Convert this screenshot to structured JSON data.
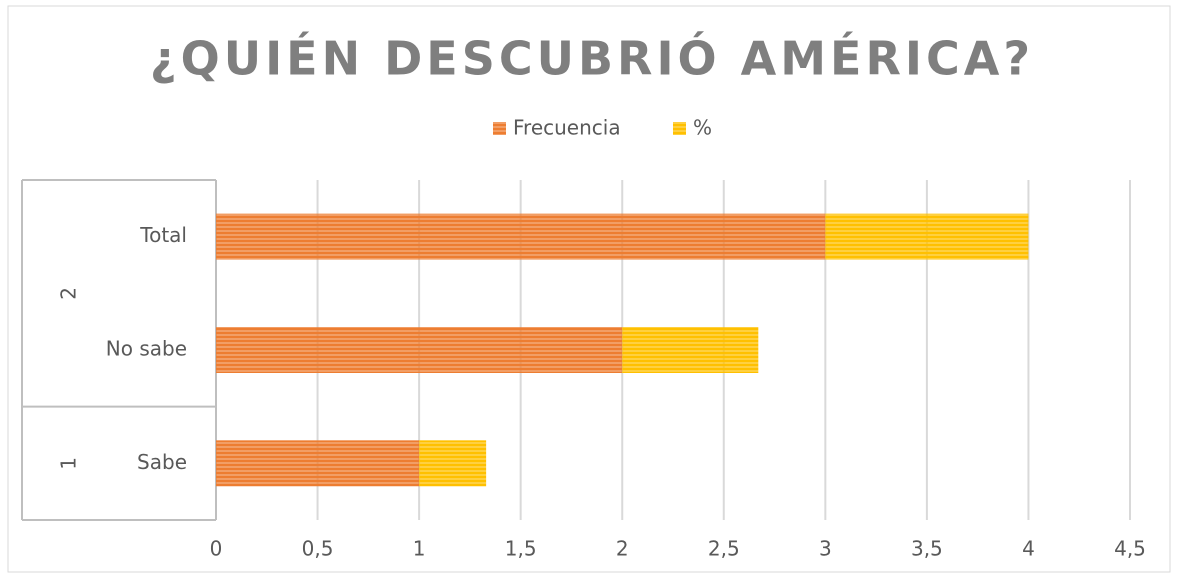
{
  "chart_data": {
    "type": "stacked-bar-horizontal",
    "title": "¿QUIÉN DESCUBRIÓ AMÉRICA?",
    "groups": [
      {
        "name": "2",
        "categories": [
          "Total",
          "No sabe"
        ]
      },
      {
        "name": "1",
        "categories": [
          "Sabe"
        ]
      }
    ],
    "series": [
      {
        "name": "Frecuencia",
        "color": "#ed7d31",
        "values": [
          3,
          2,
          1
        ]
      },
      {
        "name": "%",
        "color": "#ffc000",
        "values": [
          1,
          0.67,
          0.33
        ]
      }
    ],
    "xlim": [
      0,
      4.5
    ],
    "xticks": [
      0,
      {
        "value": 0.5,
        "label": "0,5"
      },
      1,
      {
        "value": 1.5,
        "label": "1,5"
      },
      2,
      {
        "value": 2.5,
        "label": "2,5"
      },
      3,
      {
        "value": 3.5,
        "label": "3,5"
      },
      4,
      {
        "value": 4.5,
        "label": "4,5"
      }
    ],
    "grid": true,
    "legend": "top"
  }
}
